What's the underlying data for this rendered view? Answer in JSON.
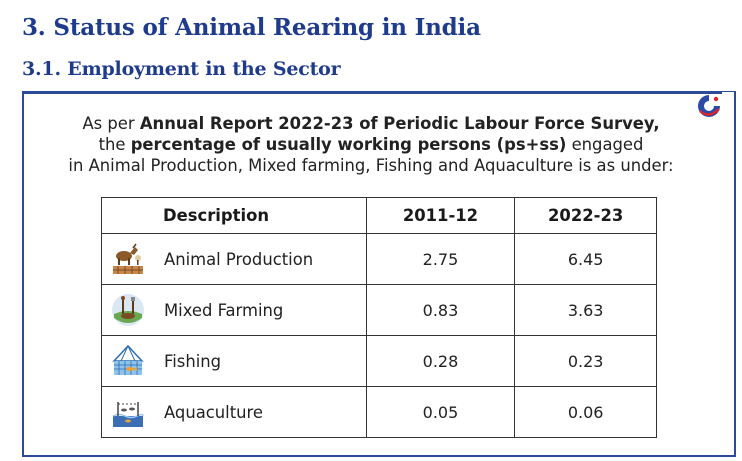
{
  "heading": "3. Status of Animal Rearing in India",
  "subheading": "3.1. Employment in the Sector",
  "intro": {
    "pre": "As per ",
    "report": "Annual Report 2022-23 of Periodic Labour Force Survey,",
    "the": "the ",
    "metric": "percentage of usually working persons (ps+ss)",
    "engaged": " engaged",
    "line3": "in Animal Production, Mixed farming, Fishing and Aquaculture is as under:"
  },
  "table": {
    "headers": [
      "Description",
      "2011-12",
      "2022-23"
    ],
    "rows": [
      {
        "label": "Animal Production",
        "icon": "animal-production-icon",
        "v2011": "2.75",
        "v2022": "6.45"
      },
      {
        "label": "Mixed Farming",
        "icon": "mixed-farming-icon",
        "v2011": "0.83",
        "v2022": "3.63"
      },
      {
        "label": "Fishing",
        "icon": "fishing-icon",
        "v2011": "0.28",
        "v2022": "0.23"
      },
      {
        "label": "Aquaculture",
        "icon": "aquaculture-icon",
        "v2011": "0.05",
        "v2022": "0.06"
      }
    ]
  },
  "colors": {
    "heading": "#1f3b8c",
    "border": "#2c4a9a",
    "logo_blue": "#2b4aa8",
    "logo_red": "#d8262b"
  }
}
